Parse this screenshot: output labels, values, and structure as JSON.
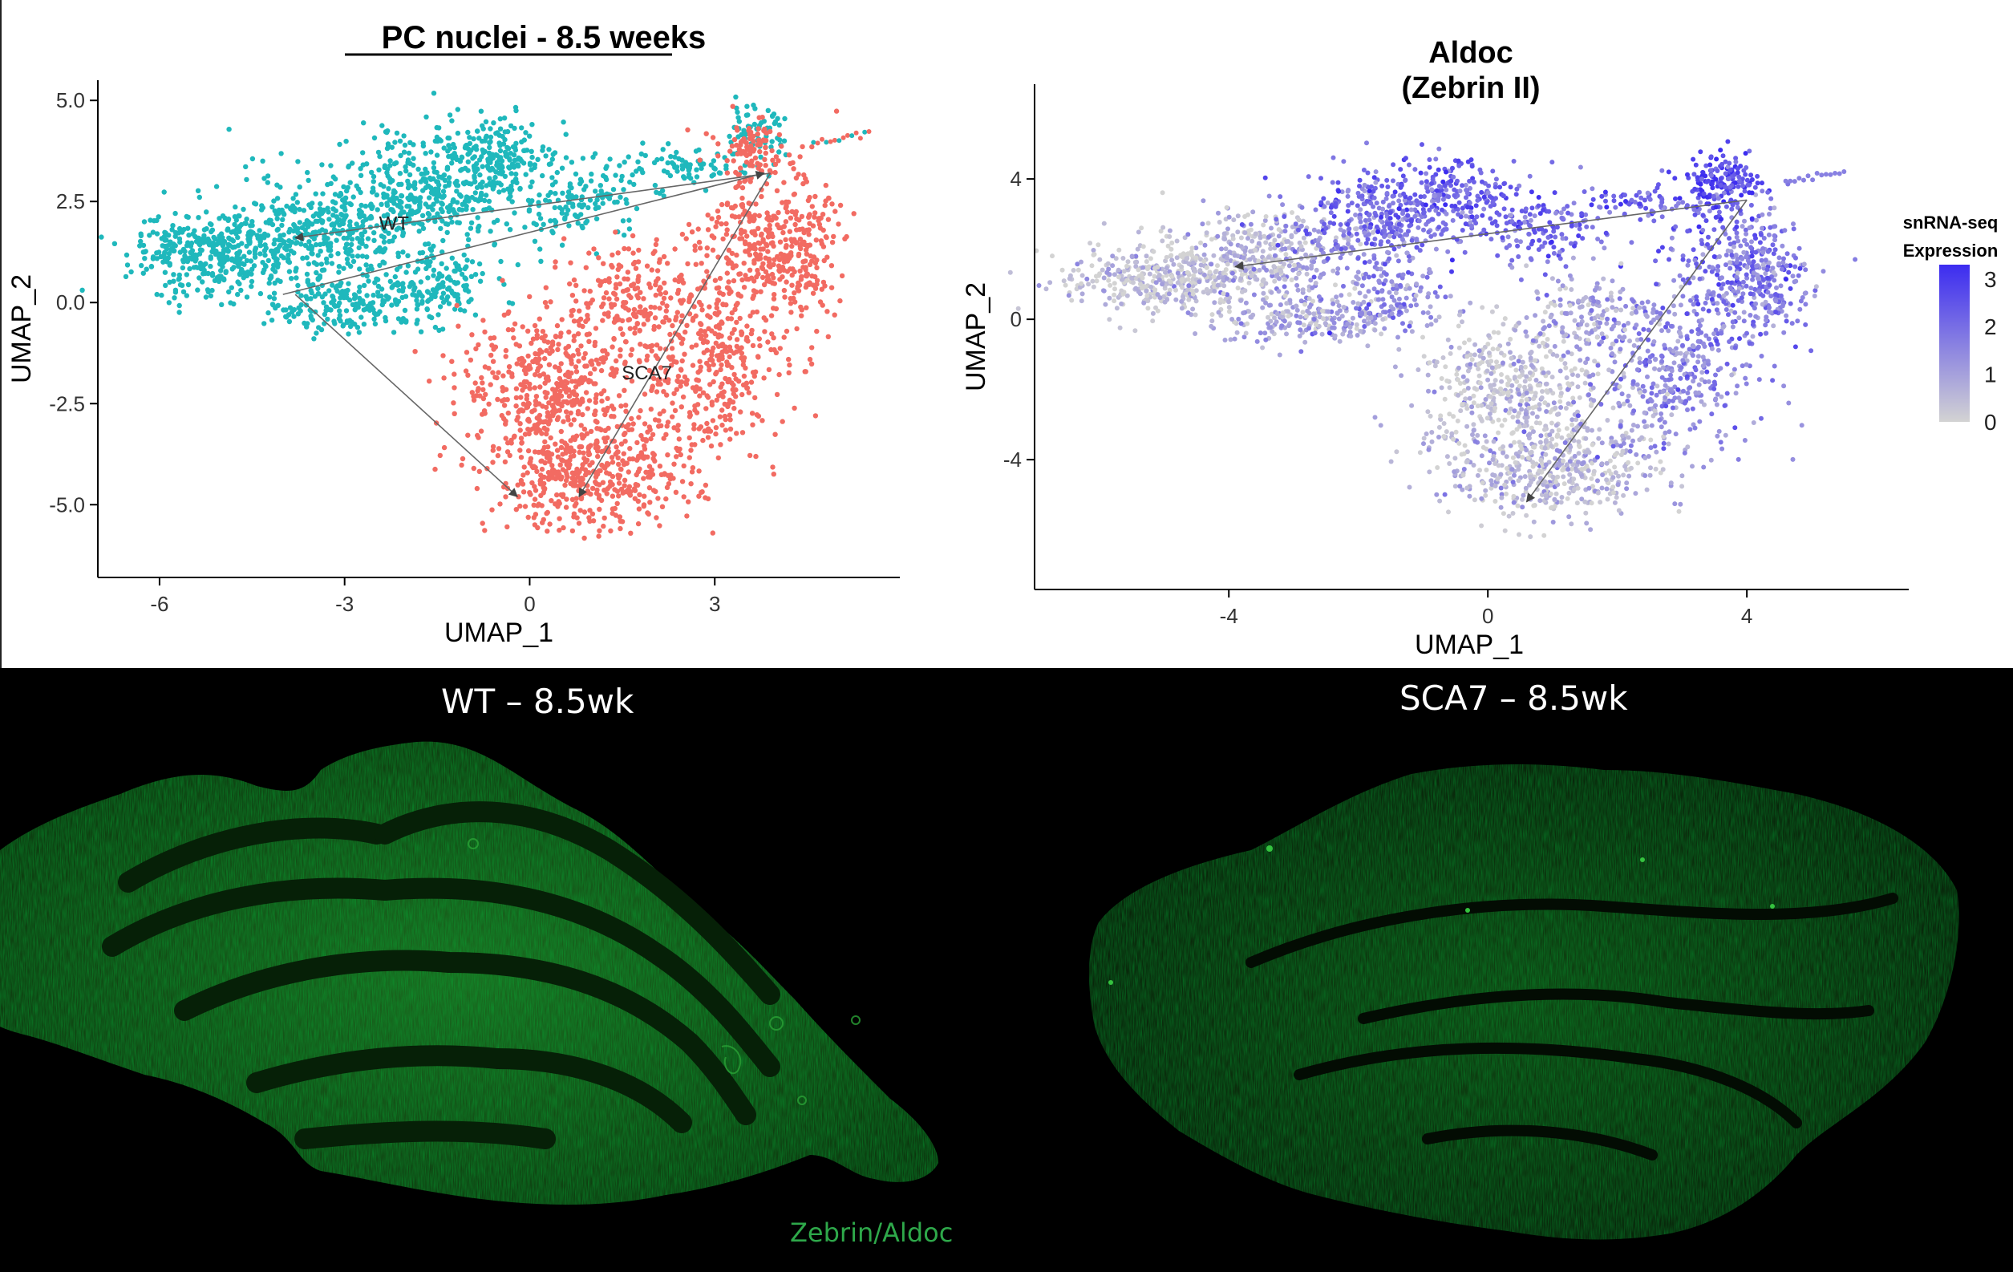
{
  "chart_data": [
    {
      "type": "scatter",
      "title": "PC nuclei - 8.5 weeks",
      "xlabel": "UMAP_1",
      "ylabel": "UMAP_2",
      "xlim": [
        -7.0,
        6.0
      ],
      "ylim": [
        -6.8,
        5.5
      ],
      "x_ticks": [
        -6,
        -3,
        0,
        3
      ],
      "y_ticks": [
        5.0,
        2.5,
        0.0,
        -2.5,
        -5.0
      ],
      "x_tick_labels": [
        "-6",
        "-3",
        "0",
        "3"
      ],
      "y_tick_labels": [
        "5.0",
        "2.5",
        "0.0",
        "-2.5",
        "-5.0"
      ],
      "grid": false,
      "series": [
        {
          "name": "WT",
          "color": "#1fb8bc",
          "label_at": [
            -2.2,
            1.8
          ]
        },
        {
          "name": "SCA7",
          "color": "#f26b62",
          "label_at": [
            1.9,
            -1.9
          ]
        }
      ],
      "arrows": [
        {
          "from": [
            3.9,
            3.2
          ],
          "to": [
            -3.8,
            1.6
          ]
        },
        {
          "from": [
            -4.0,
            0.2
          ],
          "to": [
            3.8,
            3.2
          ]
        },
        {
          "from": [
            -3.8,
            0.2
          ],
          "to": [
            -0.2,
            -4.8
          ]
        },
        {
          "from": [
            3.9,
            3.2
          ],
          "to": [
            0.8,
            -4.8
          ]
        }
      ]
    },
    {
      "type": "scatter",
      "title_line1": "Aldoc",
      "title_line2": "(Zebrin II)",
      "xlabel": "UMAP_1",
      "ylabel": "UMAP_2",
      "xlim": [
        -7.0,
        6.5
      ],
      "ylim": [
        -7.7,
        6.7
      ],
      "x_ticks": [
        -4,
        0,
        4
      ],
      "y_ticks": [
        4,
        0,
        -4
      ],
      "x_tick_labels": [
        "-4",
        "0",
        "4"
      ],
      "y_tick_labels": [
        "4",
        "0",
        "-4"
      ],
      "grid": false,
      "color_scale": {
        "low": "#d3d3d3",
        "high": "#3c2cf0",
        "min": 0,
        "max": 3.3
      },
      "legend": {
        "title_line1": "snRNA-seq",
        "title_line2": "Expression",
        "ticks": [
          "3",
          "2",
          "1",
          "0"
        ],
        "tick_values": [
          3,
          2,
          1,
          0
        ],
        "placement": "right"
      },
      "arrows": [
        {
          "from": [
            4.0,
            3.4
          ],
          "to": [
            -3.9,
            1.5
          ]
        },
        {
          "from": [
            4.0,
            3.4
          ],
          "to": [
            0.6,
            -5.2
          ]
        }
      ]
    }
  ],
  "panels": {
    "wt_title": "WT – 8.5wk",
    "sca7_title": "SCA7 – 8.5wk",
    "stain_label": "Zebrin/Aldoc"
  }
}
